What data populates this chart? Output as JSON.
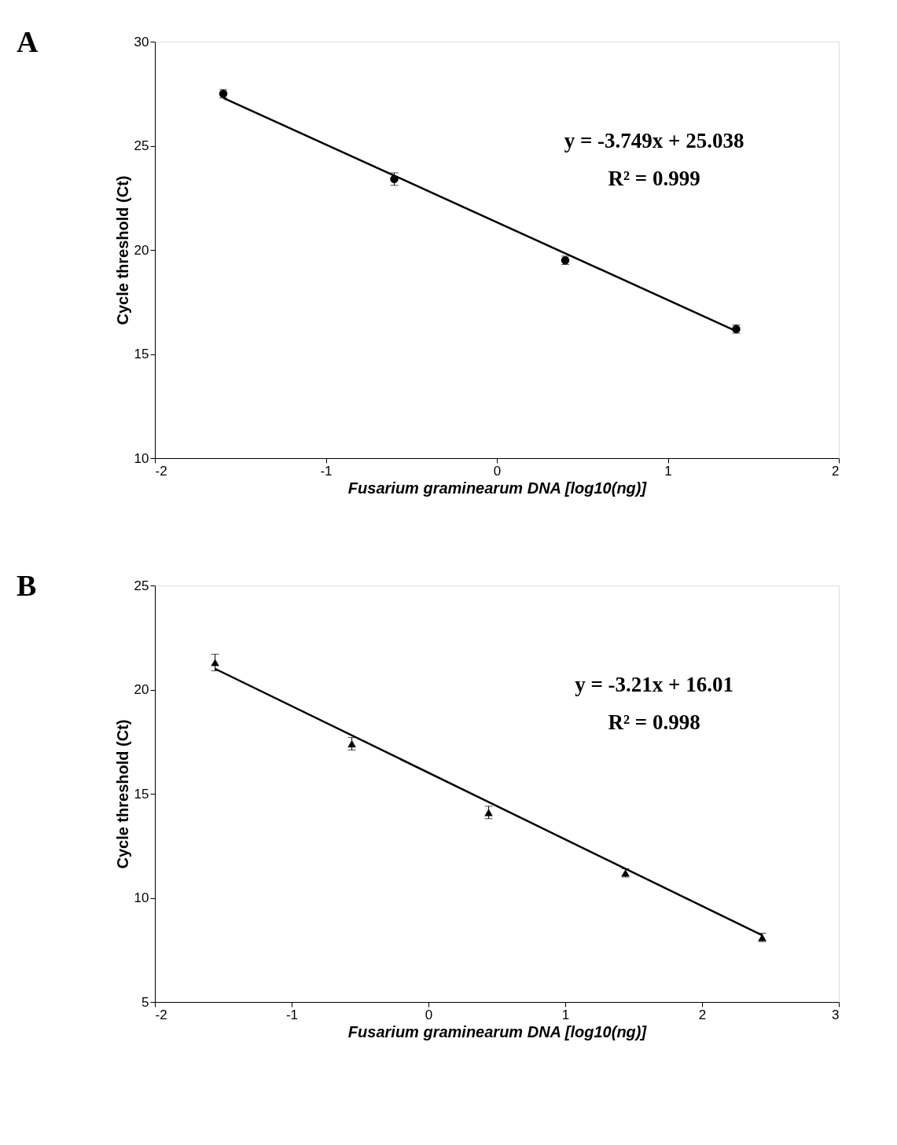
{
  "chart_data": [
    {
      "type": "scatter",
      "title": "A",
      "xlabel": "Fusarium graminearum  DNA [log10(ng)]",
      "ylabel": "Cycle  threshold (Ct)",
      "xlim": [
        -2,
        2
      ],
      "ylim": [
        10,
        30
      ],
      "xticks": [
        -2,
        -1,
        0,
        1,
        2
      ],
      "yticks": [
        10,
        15,
        20,
        25,
        30
      ],
      "grid": false,
      "marker": "circle",
      "annotations": [
        "y = -3.749x + 25.038",
        "R² = 0.999"
      ],
      "series": [
        {
          "color": "#000000",
          "x": [
            -1.6,
            -0.6,
            0.4,
            1.4
          ],
          "values": [
            27.5,
            23.4,
            19.5,
            16.2
          ],
          "errors": [
            0.2,
            0.3,
            0.2,
            0.2
          ]
        },
        {
          "type": "line",
          "marker": "none",
          "color": "#000000",
          "x": [
            -1.6,
            1.4
          ],
          "values": [
            27.3,
            16.1
          ]
        }
      ]
    },
    {
      "type": "scatter",
      "title": "B",
      "xlabel": "Fusarium graminearum  DNA [log10(ng)]",
      "ylabel": "Cycle  threshold (Ct)",
      "xlim": [
        -2,
        3
      ],
      "ylim": [
        5,
        25
      ],
      "xticks": [
        -2,
        -1,
        0,
        1,
        2,
        3
      ],
      "yticks": [
        5,
        10,
        15,
        20,
        25
      ],
      "grid": false,
      "marker": "triangle",
      "annotations": [
        "y = -3.21x + 16.01",
        "R² = 0.998"
      ],
      "series": [
        {
          "color": "#000000",
          "x": [
            -1.56,
            -0.56,
            0.44,
            1.44,
            2.44
          ],
          "values": [
            21.3,
            17.4,
            14.1,
            11.2,
            8.1
          ],
          "errors": [
            0.4,
            0.3,
            0.3,
            0.2,
            0.2
          ]
        },
        {
          "type": "line",
          "marker": "none",
          "color": "#000000",
          "x": [
            -1.56,
            2.44
          ],
          "values": [
            21.0,
            8.2
          ]
        }
      ]
    }
  ]
}
